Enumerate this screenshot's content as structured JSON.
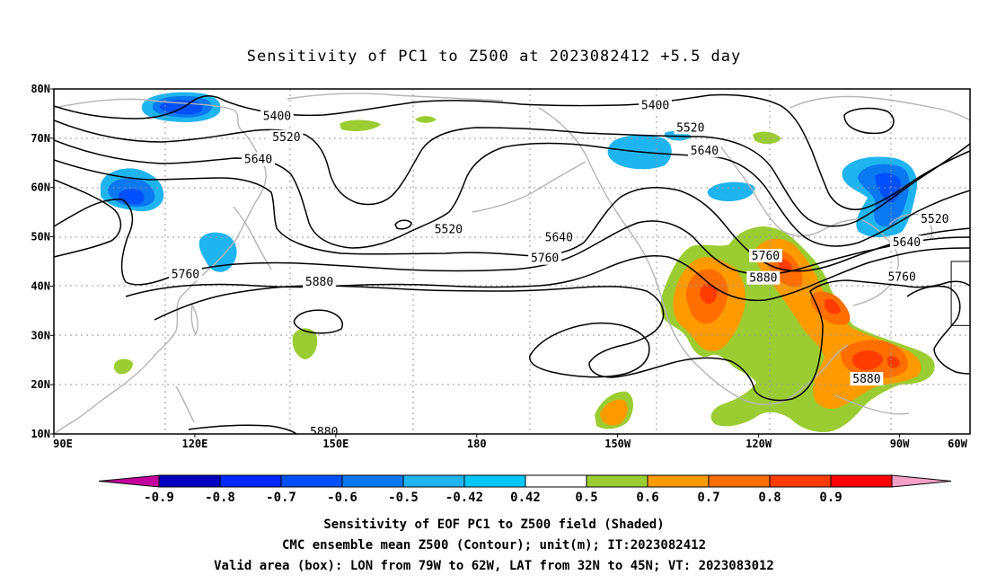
{
  "map": {
    "title": "Sensitivity of PC1 to Z500 at 2023082412 +5.5 day",
    "extent": {
      "lon": [
        90,
        285
      ],
      "lat": [
        10,
        80
      ]
    },
    "lon_ticks": [
      {
        "lon": 90,
        "label": "90E"
      },
      {
        "lon": 120,
        "label": "120E"
      },
      {
        "lon": 150,
        "label": "150E"
      },
      {
        "lon": 180,
        "label": "180"
      },
      {
        "lon": 210,
        "label": "150W"
      },
      {
        "lon": 240,
        "label": "120W"
      },
      {
        "lon": 270,
        "label": "90W"
      },
      {
        "lon": 300,
        "label": "60W"
      }
    ],
    "lat_ticks": [
      {
        "lat": 10,
        "label": "10N"
      },
      {
        "lat": 20,
        "label": "20N"
      },
      {
        "lat": 30,
        "label": "30N"
      },
      {
        "lat": 40,
        "label": "40N"
      },
      {
        "lat": 50,
        "label": "50N"
      },
      {
        "lat": 60,
        "label": "60N"
      },
      {
        "lat": 70,
        "label": "70N"
      },
      {
        "lat": 80,
        "label": "80N"
      }
    ],
    "contour_labels": [
      {
        "text": "5400",
        "lon": 137.5,
        "lat": 74.4
      },
      {
        "text": "5520",
        "lon": 139.5,
        "lat": 70.2
      },
      {
        "text": "5640",
        "lon": 133.5,
        "lat": 65.7
      },
      {
        "text": "5760",
        "lon": 118.0,
        "lat": 42.4
      },
      {
        "text": "5880",
        "lon": 146.5,
        "lat": 40.8
      },
      {
        "text": "5880",
        "lon": 147.5,
        "lat": 10.4
      },
      {
        "text": "5520",
        "lon": 174.0,
        "lat": 51.5
      },
      {
        "text": "5640",
        "lon": 197.5,
        "lat": 49.8
      },
      {
        "text": "5760",
        "lon": 194.5,
        "lat": 45.6
      },
      {
        "text": "5400",
        "lon": 218.0,
        "lat": 76.6
      },
      {
        "text": "5520",
        "lon": 225.5,
        "lat": 72.1
      },
      {
        "text": "5640",
        "lon": 228.5,
        "lat": 67.4
      },
      {
        "text": "5760",
        "lon": 241.5,
        "lat": 46.1
      },
      {
        "text": "5880",
        "lon": 241.0,
        "lat": 41.6
      },
      {
        "text": "5520",
        "lon": 277.5,
        "lat": 53.6
      },
      {
        "text": "5640",
        "lon": 271.5,
        "lat": 48.8
      },
      {
        "text": "5760",
        "lon": 270.5,
        "lat": 41.8
      },
      {
        "text": "5880",
        "lon": 263.0,
        "lat": 21.1
      }
    ],
    "valid_box": {
      "lon": [
        281,
        298
      ],
      "lat": [
        32,
        45
      ]
    }
  },
  "colorbar": {
    "labels": [
      "-0.9",
      "-0.8",
      "-0.7",
      "-0.6",
      "-0.5",
      "-0.42",
      "0.42",
      "0.5",
      "0.6",
      "0.7",
      "0.8",
      "0.9"
    ],
    "colors": [
      "#c4009e",
      "#0000c0",
      "#0028ff",
      "#0050ff",
      "#0a78f0",
      "#1eb4f0",
      "#00c8ff",
      "#ffffff",
      "#9bcd32",
      "#ff9b00",
      "#ff6e00",
      "#ff3c00",
      "#ff0000",
      "#f5a0c8"
    ]
  },
  "footer": {
    "line1": "Sensitivity of EOF PC1 to Z500 field (Shaded)",
    "line2": "CMC ensemble mean Z500 (Contour); unit(m); IT:2023082412",
    "line3": "Valid area (box): LON from 79W to 62W, LAT from 32N to 45N; VT: 2023083012"
  }
}
